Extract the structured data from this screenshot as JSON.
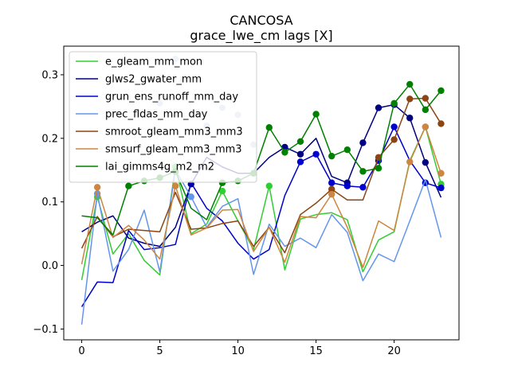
{
  "chart_data": {
    "type": "line",
    "title": "CANCOSA",
    "subtitle": "grace_lwe_cm lags [X]",
    "xlabel": "",
    "ylabel": "",
    "xlim": [
      -1.15,
      24.15
    ],
    "ylim": [
      -0.117,
      0.345
    ],
    "x_ticks": [
      0,
      5,
      10,
      15,
      20
    ],
    "y_ticks": [
      -0.1,
      0.0,
      0.1,
      0.2,
      0.3
    ],
    "y_tick_labels": [
      "−0.1",
      "0.0",
      "0.1",
      "0.2",
      "0.3"
    ],
    "grid": false,
    "legend_position": "upper-left",
    "x": [
      0,
      1,
      2,
      3,
      4,
      5,
      6,
      7,
      8,
      9,
      10,
      11,
      12,
      13,
      14,
      15,
      16,
      17,
      18,
      19,
      20,
      21,
      22,
      23
    ],
    "series": [
      {
        "name": "e_gleam_mm_mon",
        "color": "#32cd32",
        "values": [
          -0.023,
          0.108,
          0.018,
          0.05,
          0.008,
          -0.015,
          0.155,
          0.05,
          0.065,
          0.117,
          0.07,
          0.025,
          0.125,
          -0.007,
          0.073,
          0.08,
          0.083,
          0.072,
          -0.01,
          0.04,
          0.053,
          0.165,
          0.218,
          0.128
        ],
        "markers": [
          1,
          6,
          9,
          12,
          22,
          23
        ]
      },
      {
        "name": "glws2_gwater_mm",
        "color": "#000080",
        "values": [
          0.053,
          0.068,
          0.078,
          0.043,
          0.035,
          0.03,
          0.06,
          0.128,
          0.17,
          0.155,
          0.145,
          0.145,
          0.17,
          0.186,
          0.175,
          0.2,
          0.14,
          0.13,
          0.193,
          0.248,
          0.253,
          0.232,
          0.162,
          0.107
        ],
        "markers": [
          7,
          13,
          14,
          17,
          18,
          19,
          20,
          21,
          22
        ]
      },
      {
        "name": "grun_ens_runoff_mm_day",
        "color": "#0000cd",
        "values": [
          -0.065,
          -0.026,
          -0.027,
          0.055,
          0.025,
          0.028,
          0.033,
          0.13,
          0.09,
          0.07,
          0.035,
          0.01,
          0.025,
          0.11,
          0.163,
          0.175,
          0.13,
          0.125,
          0.123,
          0.165,
          0.218,
          0.165,
          0.13,
          0.122
        ],
        "markers": [
          14,
          15,
          16,
          17,
          18,
          19,
          20,
          22,
          23
        ]
      },
      {
        "name": "prec_fldas_mm_day",
        "color": "#6495ed",
        "values": [
          -0.093,
          0.113,
          -0.009,
          0.025,
          0.087,
          -0.01,
          0.15,
          0.108,
          0.06,
          0.093,
          0.105,
          -0.014,
          0.065,
          0.03,
          0.043,
          0.028,
          0.08,
          0.052,
          -0.024,
          0.018,
          0.006,
          0.07,
          0.135,
          0.044
        ],
        "markers": [
          1,
          7
        ]
      },
      {
        "name": "smroot_gleam_mm3_mm3",
        "color": "#8b4513",
        "values": [
          0.027,
          0.077,
          0.045,
          0.057,
          0.055,
          0.053,
          0.115,
          0.057,
          0.059,
          0.066,
          0.07,
          0.03,
          0.06,
          0.02,
          0.08,
          0.098,
          0.12,
          0.103,
          0.103,
          0.17,
          0.198,
          0.262,
          0.263,
          0.223
        ],
        "markers": [
          16,
          19,
          20,
          21,
          22,
          23
        ]
      },
      {
        "name": "smsurf_gleam_mm3_mm3",
        "color": "#cd853f",
        "values": [
          0.002,
          0.123,
          0.044,
          0.063,
          0.04,
          0.01,
          0.125,
          0.048,
          0.059,
          0.087,
          0.088,
          0.022,
          0.06,
          0.005,
          0.077,
          0.075,
          0.112,
          0.06,
          -0.003,
          0.07,
          0.055,
          0.163,
          0.218,
          0.145
        ],
        "markers": [
          1,
          6,
          16,
          21,
          22,
          23
        ]
      },
      {
        "name": "lai_gimms4g_m2_m2",
        "color": "#008000",
        "values": [
          0.078,
          0.075,
          0.048,
          0.125,
          0.133,
          0.138,
          0.148,
          0.09,
          0.072,
          0.13,
          0.133,
          0.145,
          0.217,
          0.178,
          0.195,
          0.238,
          0.172,
          0.182,
          0.148,
          0.153,
          0.255,
          0.285,
          0.245,
          0.275
        ],
        "markers": [
          3,
          4,
          5,
          6,
          9,
          10,
          11,
          12,
          13,
          14,
          15,
          16,
          17,
          18,
          19,
          20,
          21,
          22,
          23
        ]
      }
    ],
    "background_points": [
      {
        "x": 5,
        "y": 0.255,
        "color": "#b0c4de"
      },
      {
        "x": 6,
        "y": 0.325,
        "color": "#b0c4de"
      },
      {
        "x": 8,
        "y": 0.22,
        "color": "#b0c4de"
      },
      {
        "x": 9,
        "y": 0.248,
        "color": "#b0c4de"
      },
      {
        "x": 10,
        "y": 0.237,
        "color": "#b0c4de"
      },
      {
        "x": 11,
        "y": 0.19,
        "color": "#b0c4de"
      }
    ]
  }
}
